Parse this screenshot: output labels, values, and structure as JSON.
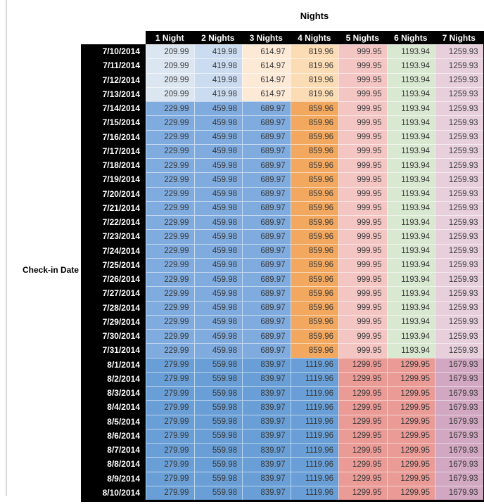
{
  "table": {
    "title": "Nights",
    "row_axis_label": "Check-in Date",
    "column_headers": [
      "1 Night",
      "2 Nights",
      "3 Nights",
      "4 Nights",
      "5 Nights",
      "6 Nights",
      "7 Nights"
    ],
    "rows": [
      {
        "date": "7/10/2014",
        "band": 0,
        "values": [
          "209.99",
          "419.98",
          "614.97",
          "819.96",
          "999.95",
          "1193.94",
          "1259.93"
        ]
      },
      {
        "date": "7/11/2014",
        "band": 0,
        "values": [
          "209.99",
          "419.98",
          "614.97",
          "819.96",
          "999.95",
          "1193.94",
          "1259.93"
        ]
      },
      {
        "date": "7/12/2014",
        "band": 0,
        "values": [
          "209.99",
          "419.98",
          "614.97",
          "819.96",
          "999.95",
          "1193.94",
          "1259.93"
        ]
      },
      {
        "date": "7/13/2014",
        "band": 0,
        "values": [
          "209.99",
          "419.98",
          "614.97",
          "819.96",
          "999.95",
          "1193.94",
          "1259.93"
        ]
      },
      {
        "date": "7/14/2014",
        "band": 1,
        "values": [
          "229.99",
          "459.98",
          "689.97",
          "859.96",
          "999.95",
          "1193.94",
          "1259.93"
        ]
      },
      {
        "date": "7/15/2014",
        "band": 1,
        "values": [
          "229.99",
          "459.98",
          "689.97",
          "859.96",
          "999.95",
          "1193.94",
          "1259.93"
        ]
      },
      {
        "date": "7/16/2014",
        "band": 1,
        "values": [
          "229.99",
          "459.98",
          "689.97",
          "859.96",
          "999.95",
          "1193.94",
          "1259.93"
        ]
      },
      {
        "date": "7/17/2014",
        "band": 1,
        "values": [
          "229.99",
          "459.98",
          "689.97",
          "859.96",
          "999.95",
          "1193.94",
          "1259.93"
        ]
      },
      {
        "date": "7/18/2014",
        "band": 1,
        "values": [
          "229.99",
          "459.98",
          "689.97",
          "859.96",
          "999.95",
          "1193.94",
          "1259.93"
        ]
      },
      {
        "date": "7/19/2014",
        "band": 1,
        "values": [
          "229.99",
          "459.98",
          "689.97",
          "859.96",
          "999.95",
          "1193.94",
          "1259.93"
        ]
      },
      {
        "date": "7/20/2014",
        "band": 1,
        "values": [
          "229.99",
          "459.98",
          "689.97",
          "859.96",
          "999.95",
          "1193.94",
          "1259.93"
        ]
      },
      {
        "date": "7/21/2014",
        "band": 1,
        "values": [
          "229.99",
          "459.98",
          "689.97",
          "859.96",
          "999.95",
          "1193.94",
          "1259.93"
        ]
      },
      {
        "date": "7/22/2014",
        "band": 1,
        "values": [
          "229.99",
          "459.98",
          "689.97",
          "859.96",
          "999.95",
          "1193.94",
          "1259.93"
        ]
      },
      {
        "date": "7/23/2014",
        "band": 1,
        "values": [
          "229.99",
          "459.98",
          "689.97",
          "859.96",
          "999.95",
          "1193.94",
          "1259.93"
        ]
      },
      {
        "date": "7/24/2014",
        "band": 1,
        "values": [
          "229.99",
          "459.98",
          "689.97",
          "859.96",
          "999.95",
          "1193.94",
          "1259.93"
        ]
      },
      {
        "date": "7/25/2014",
        "band": 1,
        "values": [
          "229.99",
          "459.98",
          "689.97",
          "859.96",
          "999.95",
          "1193.94",
          "1259.93"
        ]
      },
      {
        "date": "7/26/2014",
        "band": 1,
        "values": [
          "229.99",
          "459.98",
          "689.97",
          "859.96",
          "999.95",
          "1193.94",
          "1259.93"
        ]
      },
      {
        "date": "7/27/2014",
        "band": 1,
        "values": [
          "229.99",
          "459.98",
          "689.97",
          "859.96",
          "999.95",
          "1193.94",
          "1259.93"
        ]
      },
      {
        "date": "7/28/2014",
        "band": 1,
        "values": [
          "229.99",
          "459.98",
          "689.97",
          "859.96",
          "999.95",
          "1193.94",
          "1259.93"
        ]
      },
      {
        "date": "7/29/2014",
        "band": 1,
        "values": [
          "229.99",
          "459.98",
          "689.97",
          "859.96",
          "999.95",
          "1193.94",
          "1259.93"
        ]
      },
      {
        "date": "7/30/2014",
        "band": 1,
        "values": [
          "229.99",
          "459.98",
          "689.97",
          "859.96",
          "999.95",
          "1193.94",
          "1259.93"
        ]
      },
      {
        "date": "7/31/2014",
        "band": 1,
        "values": [
          "229.99",
          "459.98",
          "689.97",
          "859.96",
          "999.95",
          "1193.94",
          "1259.93"
        ]
      },
      {
        "date": "8/1/2014",
        "band": 2,
        "values": [
          "279.99",
          "559.98",
          "839.97",
          "1119.96",
          "1299.95",
          "1299.95",
          "1679.93"
        ]
      },
      {
        "date": "8/2/2014",
        "band": 2,
        "values": [
          "279.99",
          "559.98",
          "839.97",
          "1119.96",
          "1299.95",
          "1299.95",
          "1679.93"
        ]
      },
      {
        "date": "8/3/2014",
        "band": 2,
        "values": [
          "279.99",
          "559.98",
          "839.97",
          "1119.96",
          "1299.95",
          "1299.95",
          "1679.93"
        ]
      },
      {
        "date": "8/4/2014",
        "band": 2,
        "values": [
          "279.99",
          "559.98",
          "839.97",
          "1119.96",
          "1299.95",
          "1299.95",
          "1679.93"
        ]
      },
      {
        "date": "8/5/2014",
        "band": 2,
        "values": [
          "279.99",
          "559.98",
          "839.97",
          "1119.96",
          "1299.95",
          "1299.95",
          "1679.93"
        ]
      },
      {
        "date": "8/6/2014",
        "band": 2,
        "values": [
          "279.99",
          "559.98",
          "839.97",
          "1119.96",
          "1299.95",
          "1299.95",
          "1679.93"
        ]
      },
      {
        "date": "8/7/2014",
        "band": 2,
        "values": [
          "279.99",
          "559.98",
          "839.97",
          "1119.96",
          "1299.95",
          "1299.95",
          "1679.93"
        ]
      },
      {
        "date": "8/8/2014",
        "band": 2,
        "values": [
          "279.99",
          "559.98",
          "839.97",
          "1119.96",
          "1299.95",
          "1299.95",
          "1679.93"
        ]
      },
      {
        "date": "8/9/2014",
        "band": 2,
        "values": [
          "279.99",
          "559.98",
          "839.97",
          "1119.96",
          "1299.95",
          "1299.95",
          "1679.93"
        ]
      },
      {
        "date": "8/10/2014",
        "band": 2,
        "values": [
          "279.99",
          "559.98",
          "839.97",
          "1119.96",
          "1299.95",
          "1299.95",
          "1679.93"
        ]
      }
    ]
  },
  "colors": {
    "header_bg": "#000000",
    "header_text": "#ffffff",
    "date_col_bg": "#000000",
    "date_col_text": "#ffffff",
    "value_text": "#3a3a3a",
    "window_edge": "#d8d8d8",
    "band_cell_fills": [
      [
        "#dce6f1",
        "#cbdcf1",
        "#fcead7",
        "#fbdcb4",
        "#f3c6c3",
        "#d9e8d1",
        "#e7d0dc"
      ],
      [
        "#7fabde",
        "#7fabde",
        "#7fabde",
        "#f2a85f",
        "#f3c6c3",
        "#d9e8d1",
        "#e7d0dc"
      ],
      [
        "#699fd6",
        "#699fd6",
        "#699fd6",
        "#699fd6",
        "#ea9b96",
        "#ea9b96",
        "#d1a7c1"
      ]
    ]
  }
}
